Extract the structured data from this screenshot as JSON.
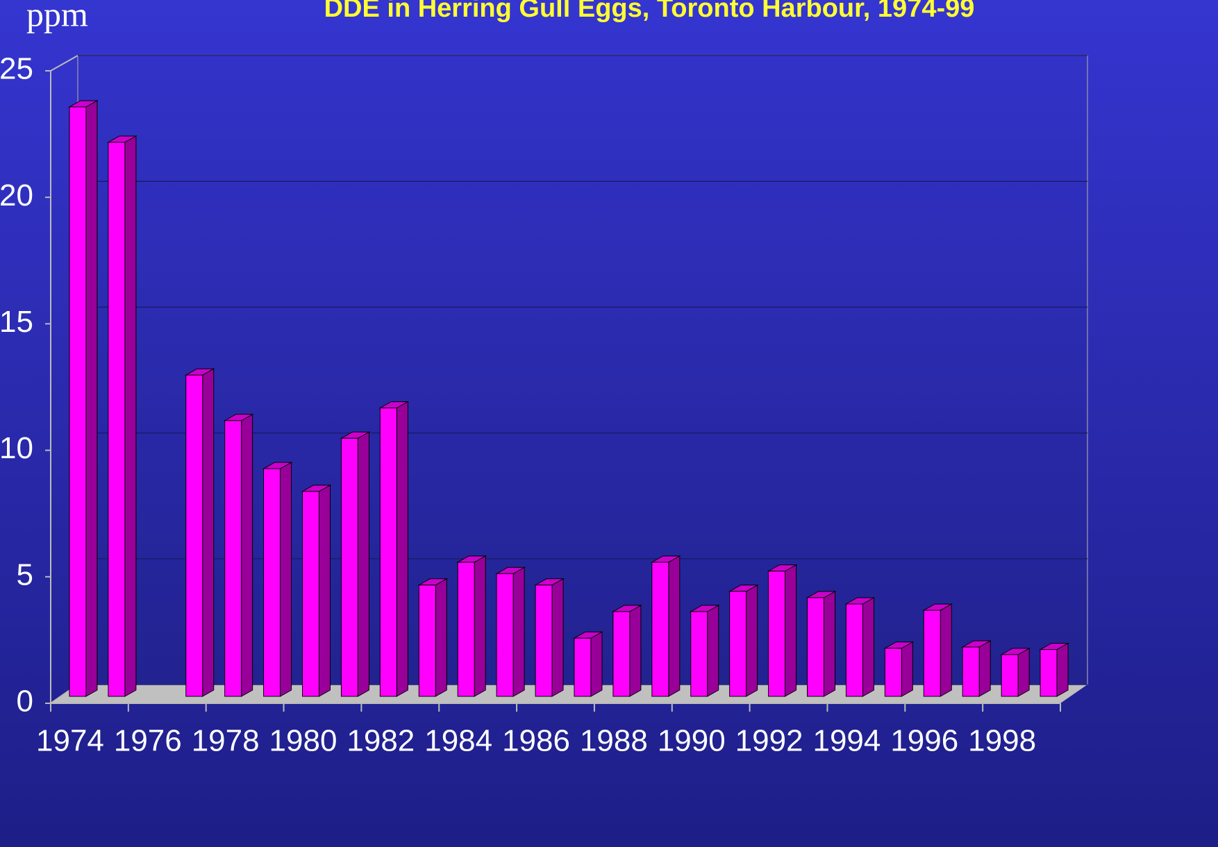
{
  "chart_data": {
    "type": "bar3d",
    "title": "DDE in Herring Gull Eggs, Toronto Harbour, 1974-99",
    "y_label": "ppm",
    "categories": [
      "1974",
      null,
      "1976",
      null,
      "1978",
      null,
      "1980",
      null,
      "1982",
      null,
      "1984",
      null,
      "1986",
      null,
      "1988",
      null,
      "1990",
      null,
      "1992",
      null,
      "1994",
      null,
      "1996",
      null,
      "1998",
      null
    ],
    "values": [
      23.3,
      21.9,
      null,
      12.7,
      10.9,
      9.0,
      8.1,
      10.2,
      11.4,
      4.4,
      5.3,
      4.85,
      4.4,
      2.3,
      3.35,
      5.3,
      3.35,
      4.15,
      4.95,
      3.9,
      3.65,
      1.9,
      3.4,
      1.95,
      1.65,
      1.85
    ],
    "color": "#ff00ff",
    "ylim": [
      0,
      25
    ],
    "yticks": [
      0,
      5,
      10,
      15,
      20,
      25
    ],
    "grid": true
  }
}
